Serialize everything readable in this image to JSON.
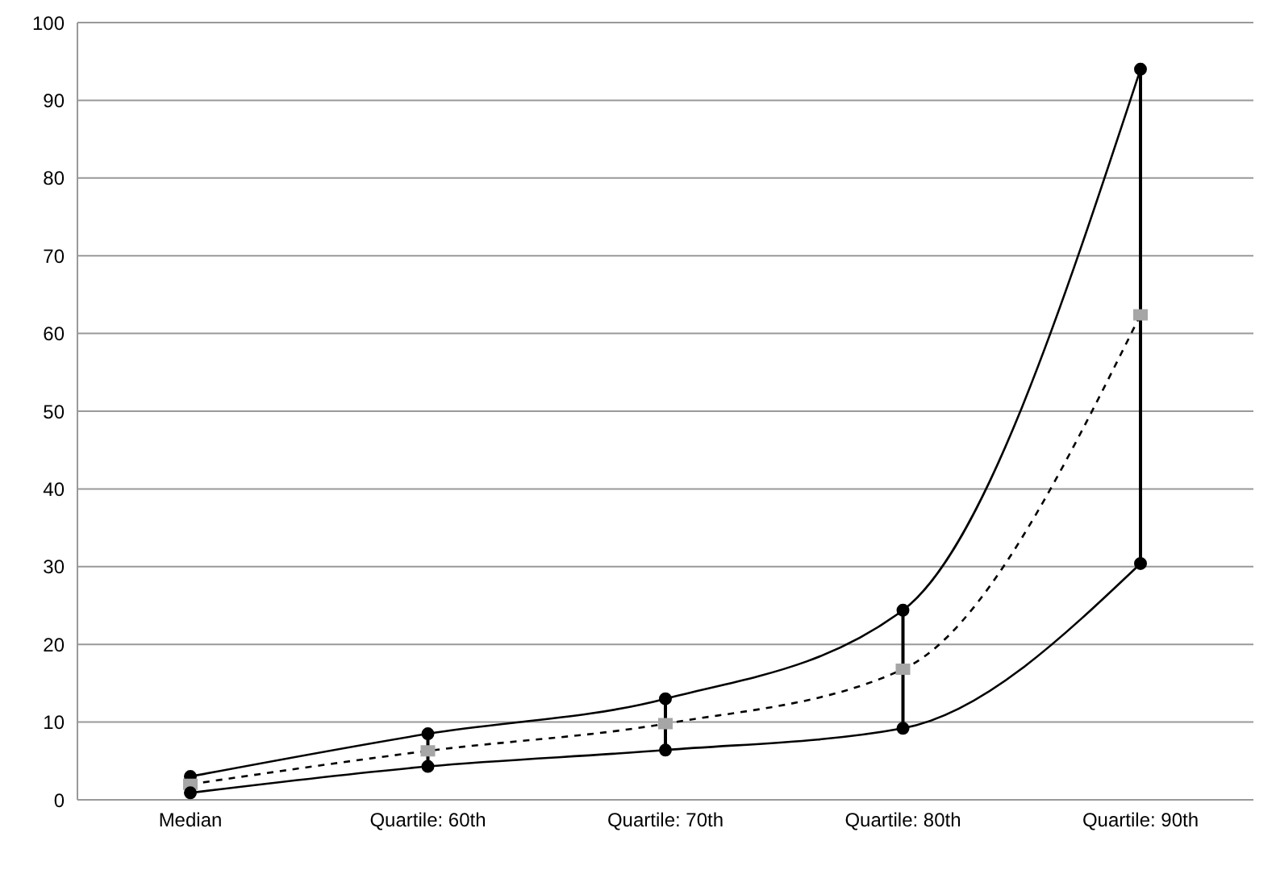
{
  "chart_data": {
    "type": "line",
    "categories": [
      "Median",
      "Quartile: 60th",
      "Quartile: 70th",
      "Quartile: 80th",
      "Quartile: 90th"
    ],
    "series": [
      {
        "color": "#000000",
        "values": [
          3,
          8.5,
          13,
          24.4,
          94
        ],
        "errors": [
          [
            0.9,
            3
          ],
          [
            4.3,
            8.5
          ],
          [
            6.4,
            13
          ],
          [
            9.2,
            24.4
          ],
          [
            30.4,
            94
          ]
        ],
        "marker": "circle",
        "line_style": "solid"
      },
      {
        "color": "#000000",
        "values": [
          2,
          6.3,
          9.8,
          16.8,
          62.4
        ],
        "marker": "square",
        "line_style": "dashed"
      },
      {
        "color": "#000000",
        "values": [
          0.9,
          4.3,
          6.4,
          9.2,
          30.4
        ],
        "marker": "circle",
        "line_style": "solid"
      }
    ],
    "ylim": [
      0,
      100
    ],
    "yticks": [
      0,
      10,
      20,
      30,
      40,
      50,
      60,
      70,
      80,
      90,
      100
    ],
    "grid": "y",
    "legend": false
  }
}
